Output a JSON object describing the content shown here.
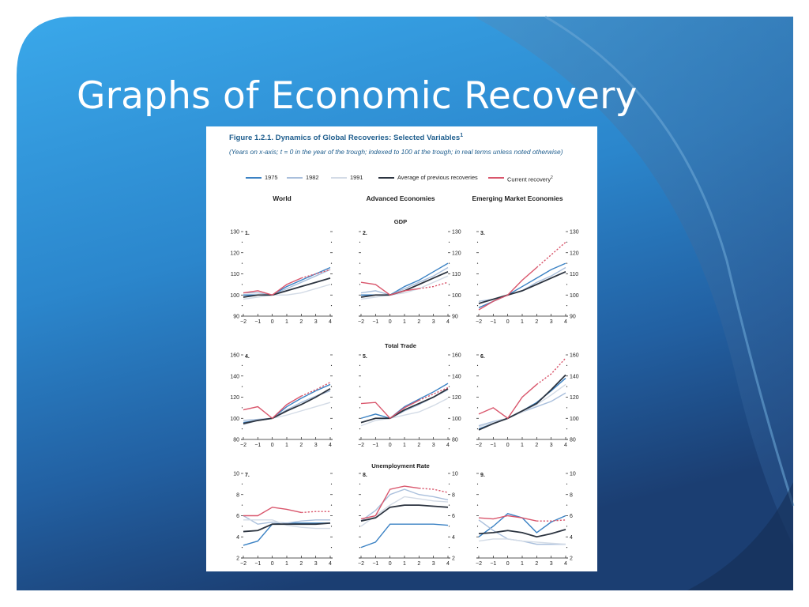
{
  "slide": {
    "title": "Graphs of Economic Recovery",
    "colors": {
      "bg_light": "#3aa6e6",
      "bg_mid": "#2c7fc0",
      "bg_dark": "#1a3d6e",
      "ribbon": "#4a8fc4",
      "title_text": "#ffffff"
    }
  },
  "figure": {
    "title": "Figure 1.2.1. Dynamics of Global Recoveries: Selected Variables",
    "title_note": "1",
    "subtitle": "(Years on x-axis; t = 0 in the year of the trough; indexed to 100 at the trough; in real terms unless noted otherwise)",
    "legend": [
      {
        "label": "1975",
        "color": "#3b82c4",
        "note": ""
      },
      {
        "label": "1982",
        "color": "#a9bfdc",
        "note": ""
      },
      {
        "label": "1991",
        "color": "#d3dbe6",
        "note": ""
      },
      {
        "label": "Average of previous recoveries",
        "color": "#2c3440",
        "note": ""
      },
      {
        "label": "Current recovery",
        "color": "#d9566c",
        "note": "2"
      }
    ],
    "columns": [
      "World",
      "Advanced Economies",
      "Emerging Market Economies"
    ],
    "rows": [
      "GDP",
      "Total Trade",
      "Unemployment Rate"
    ]
  },
  "chart_data": [
    {
      "type": "line",
      "panel": "1.",
      "column": "World",
      "row": "GDP",
      "x": [
        -2,
        -1,
        0,
        1,
        2,
        3,
        4
      ],
      "ylim": [
        90,
        130
      ],
      "yticks": [
        90,
        100,
        110,
        120,
        130
      ],
      "series": [
        {
          "name": "1975",
          "values": [
            100,
            100,
            100,
            104,
            107,
            110,
            113
          ]
        },
        {
          "name": "1982",
          "values": [
            101,
            101,
            100,
            103,
            106,
            109,
            112
          ]
        },
        {
          "name": "1991",
          "values": [
            98,
            99,
            100,
            100,
            101,
            103,
            105
          ]
        },
        {
          "name": "Average of previous recoveries",
          "values": [
            99,
            100,
            100,
            102,
            104,
            106,
            108
          ]
        },
        {
          "name": "Current recovery",
          "values": [
            101,
            102,
            100,
            105,
            108,
            110,
            112
          ],
          "projected_from": 2
        }
      ]
    },
    {
      "type": "line",
      "panel": "2.",
      "column": "Advanced Economies",
      "row": "GDP",
      "x": [
        -2,
        -1,
        0,
        1,
        2,
        3,
        4
      ],
      "ylim": [
        90,
        130
      ],
      "yticks": [
        90,
        100,
        110,
        120,
        130
      ],
      "series": [
        {
          "name": "1975",
          "values": [
            100,
            100,
            100,
            104,
            107,
            111,
            115
          ]
        },
        {
          "name": "1982",
          "values": [
            101,
            102,
            100,
            103,
            106,
            109,
            113
          ]
        },
        {
          "name": "1991",
          "values": [
            98,
            99,
            100,
            101,
            103,
            106,
            109
          ]
        },
        {
          "name": "Average of previous recoveries",
          "values": [
            99,
            100,
            100,
            102,
            105,
            108,
            111
          ]
        },
        {
          "name": "Current recovery",
          "values": [
            106,
            105,
            100,
            102,
            103,
            104,
            106
          ],
          "projected_from": 2
        }
      ]
    },
    {
      "type": "line",
      "panel": "3.",
      "column": "Emerging Market Economies",
      "row": "GDP",
      "x": [
        -2,
        -1,
        0,
        1,
        2,
        3,
        4
      ],
      "ylim": [
        90,
        130
      ],
      "yticks": [
        90,
        100,
        110,
        120,
        130
      ],
      "series": [
        {
          "name": "1975",
          "values": [
            94,
            97,
            100,
            104,
            108,
            112,
            115
          ]
        },
        {
          "name": "1982",
          "values": [
            97,
            98,
            100,
            102,
            106,
            109,
            113
          ]
        },
        {
          "name": "1991",
          "values": [
            96,
            98,
            100,
            102,
            105,
            108,
            111
          ]
        },
        {
          "name": "Average of previous recoveries",
          "values": [
            96,
            98,
            100,
            102,
            105,
            108,
            111
          ]
        },
        {
          "name": "Current recovery",
          "values": [
            93,
            97,
            100,
            107,
            113,
            119,
            125
          ],
          "projected_from": 2
        }
      ]
    },
    {
      "type": "line",
      "panel": "4.",
      "column": "World",
      "row": "Total Trade",
      "x": [
        -2,
        -1,
        0,
        1,
        2,
        3,
        4
      ],
      "ylim": [
        80,
        160
      ],
      "yticks": [
        80,
        100,
        120,
        140,
        160
      ],
      "series": [
        {
          "name": "1975",
          "values": [
            96,
            98,
            100,
            111,
            119,
            126,
            132
          ]
        },
        {
          "name": "1982",
          "values": [
            98,
            99,
            100,
            108,
            115,
            121,
            126
          ]
        },
        {
          "name": "1991",
          "values": [
            94,
            98,
            100,
            103,
            107,
            111,
            115
          ]
        },
        {
          "name": "Average of previous recoveries",
          "values": [
            95,
            98,
            100,
            107,
            113,
            120,
            128
          ]
        },
        {
          "name": "Current recovery",
          "values": [
            108,
            111,
            100,
            113,
            121,
            127,
            134
          ],
          "projected_from": 2
        }
      ]
    },
    {
      "type": "line",
      "panel": "5.",
      "column": "Advanced Economies",
      "row": "Total Trade",
      "x": [
        -2,
        -1,
        0,
        1,
        2,
        3,
        4
      ],
      "ylim": [
        80,
        160
      ],
      "yticks": [
        80,
        100,
        120,
        140,
        160
      ],
      "series": [
        {
          "name": "1975",
          "values": [
            100,
            104,
            100,
            111,
            118,
            125,
            133
          ]
        },
        {
          "name": "1982",
          "values": [
            96,
            100,
            100,
            107,
            113,
            120,
            127
          ]
        },
        {
          "name": "1991",
          "values": [
            93,
            98,
            100,
            103,
            106,
            112,
            119
          ]
        },
        {
          "name": "Average of previous recoveries",
          "values": [
            96,
            100,
            100,
            108,
            114,
            120,
            128
          ]
        },
        {
          "name": "Current recovery",
          "values": [
            114,
            115,
            100,
            110,
            117,
            123,
            129
          ],
          "projected_from": 2
        }
      ]
    },
    {
      "type": "line",
      "panel": "6.",
      "column": "Emerging Market Economies",
      "row": "Total Trade",
      "x": [
        -2,
        -1,
        0,
        1,
        2,
        3,
        4
      ],
      "ylim": [
        80,
        160
      ],
      "yticks": [
        80,
        100,
        120,
        140,
        160
      ],
      "series": [
        {
          "name": "1975",
          "values": [
            90,
            95,
            100,
            107,
            115,
            126,
            138
          ]
        },
        {
          "name": "1982",
          "values": [
            93,
            97,
            100,
            106,
            111,
            116,
            124
          ]
        },
        {
          "name": "1991",
          "values": [
            92,
            96,
            100,
            106,
            113,
            122,
            132
          ]
        },
        {
          "name": "Average of previous recoveries",
          "values": [
            89,
            95,
            100,
            107,
            114,
            127,
            141
          ]
        },
        {
          "name": "Current recovery",
          "values": [
            104,
            110,
            100,
            120,
            132,
            142,
            157
          ],
          "projected_from": 2
        }
      ]
    },
    {
      "type": "line",
      "panel": "7.",
      "column": "World",
      "row": "Unemployment Rate",
      "x": [
        -2,
        -1,
        0,
        1,
        2,
        3,
        4
      ],
      "ylim": [
        2,
        10
      ],
      "yticks": [
        2,
        4,
        6,
        8,
        10
      ],
      "unit_note": "",
      "series": [
        {
          "name": "1975",
          "values": [
            3.2,
            3.6,
            5.2,
            5.3,
            5.3,
            5.3,
            5.3
          ]
        },
        {
          "name": "1982",
          "values": [
            6.0,
            5.2,
            5.4,
            5.3,
            5.5,
            5.6,
            5.6
          ]
        },
        {
          "name": "1991",
          "values": [
            5.6,
            5.6,
            5.6,
            5.1,
            4.9,
            4.8,
            4.8
          ]
        },
        {
          "name": "Average of previous recoveries",
          "values": [
            4.5,
            4.6,
            5.2,
            5.2,
            5.2,
            5.2,
            5.3
          ]
        },
        {
          "name": "Current recovery",
          "values": [
            6.0,
            6.0,
            6.8,
            6.6,
            6.3,
            6.4,
            6.4
          ],
          "projected_from": 2
        }
      ]
    },
    {
      "type": "line",
      "panel": "8.",
      "column": "Advanced Economies",
      "row": "Unemployment Rate",
      "x": [
        -2,
        -1,
        0,
        1,
        2,
        3,
        4
      ],
      "ylim": [
        2,
        10
      ],
      "yticks": [
        2,
        4,
        6,
        8,
        10
      ],
      "series": [
        {
          "name": "1975",
          "values": [
            3.0,
            3.5,
            5.2,
            5.2,
            5.2,
            5.2,
            5.1
          ]
        },
        {
          "name": "1982",
          "values": [
            5.5,
            6.5,
            8.0,
            8.5,
            8.0,
            7.8,
            7.5
          ]
        },
        {
          "name": "1991",
          "values": [
            5.0,
            6.0,
            7.0,
            7.8,
            7.6,
            7.4,
            7.3
          ]
        },
        {
          "name": "Average of previous recoveries",
          "values": [
            5.5,
            5.8,
            6.8,
            7.0,
            7.0,
            6.9,
            6.8
          ]
        },
        {
          "name": "Current recovery",
          "values": [
            5.7,
            6.0,
            8.5,
            8.8,
            8.6,
            8.5,
            8.2
          ],
          "projected_from": 2
        }
      ]
    },
    {
      "type": "line",
      "panel": "9.",
      "column": "Emerging Market Economies",
      "row": "Unemployment Rate",
      "x": [
        -2,
        -1,
        0,
        1,
        2,
        3,
        4
      ],
      "ylim": [
        2,
        10
      ],
      "yticks": [
        2,
        4,
        6,
        8,
        10
      ],
      "series": [
        {
          "name": "1975",
          "values": [
            4.0,
            5.0,
            6.2,
            5.8,
            4.4,
            5.4,
            6.0
          ]
        },
        {
          "name": "1982",
          "values": [
            5.6,
            4.6,
            3.8,
            3.6,
            3.3,
            3.3,
            3.3
          ]
        },
        {
          "name": "1991",
          "values": [
            3.6,
            3.8,
            3.8,
            3.6,
            3.5,
            3.4,
            3.3
          ]
        },
        {
          "name": "Average of previous recoveries",
          "values": [
            4.3,
            4.4,
            4.6,
            4.4,
            4.0,
            4.3,
            4.7
          ]
        },
        {
          "name": "Current recovery",
          "values": [
            5.8,
            5.7,
            6.0,
            5.8,
            5.5,
            5.5,
            5.6
          ],
          "projected_from": 2
        }
      ]
    }
  ]
}
